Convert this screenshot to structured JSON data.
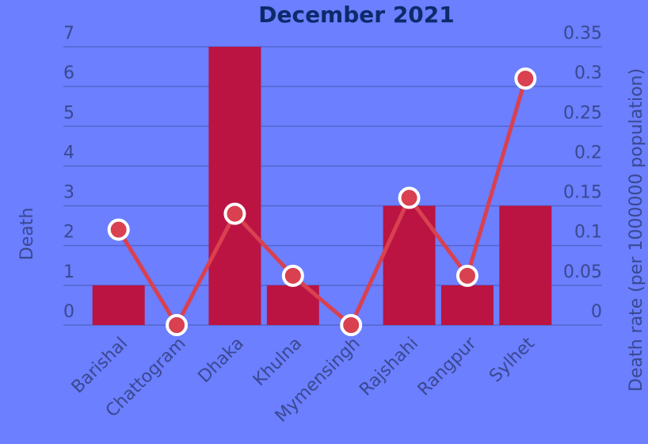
{
  "chart_data": {
    "type": "bar_line",
    "title": "December 2021",
    "categories": [
      "Barishal",
      "Chattogram",
      "Dhaka",
      "Khulna",
      "Mymensingh",
      "Rajshahi",
      "Rangpur",
      "Sylhet"
    ],
    "series": [
      {
        "name": "Death",
        "color": "#bb1442",
        "values": [
          1,
          0,
          7,
          1,
          0,
          3,
          1,
          3
        ]
      },
      {
        "name": "Death rate",
        "color": "#d94050",
        "axis": "y2",
        "values": [
          0.12,
          0,
          0.14,
          0.062,
          0,
          0.16,
          0.062,
          0.31
        ]
      }
    ],
    "ylabel": "Death",
    "y2label": "Death rate (per 1000000 population)",
    "ylim": [
      0,
      7
    ],
    "yticks": [
      0,
      1,
      2,
      3,
      4,
      5,
      6,
      7
    ],
    "y2lim": [
      0,
      0.35
    ],
    "y2ticks": [
      0,
      0.05,
      0.1,
      0.15,
      0.2,
      0.25,
      0.3,
      0.35
    ],
    "grid": true
  }
}
